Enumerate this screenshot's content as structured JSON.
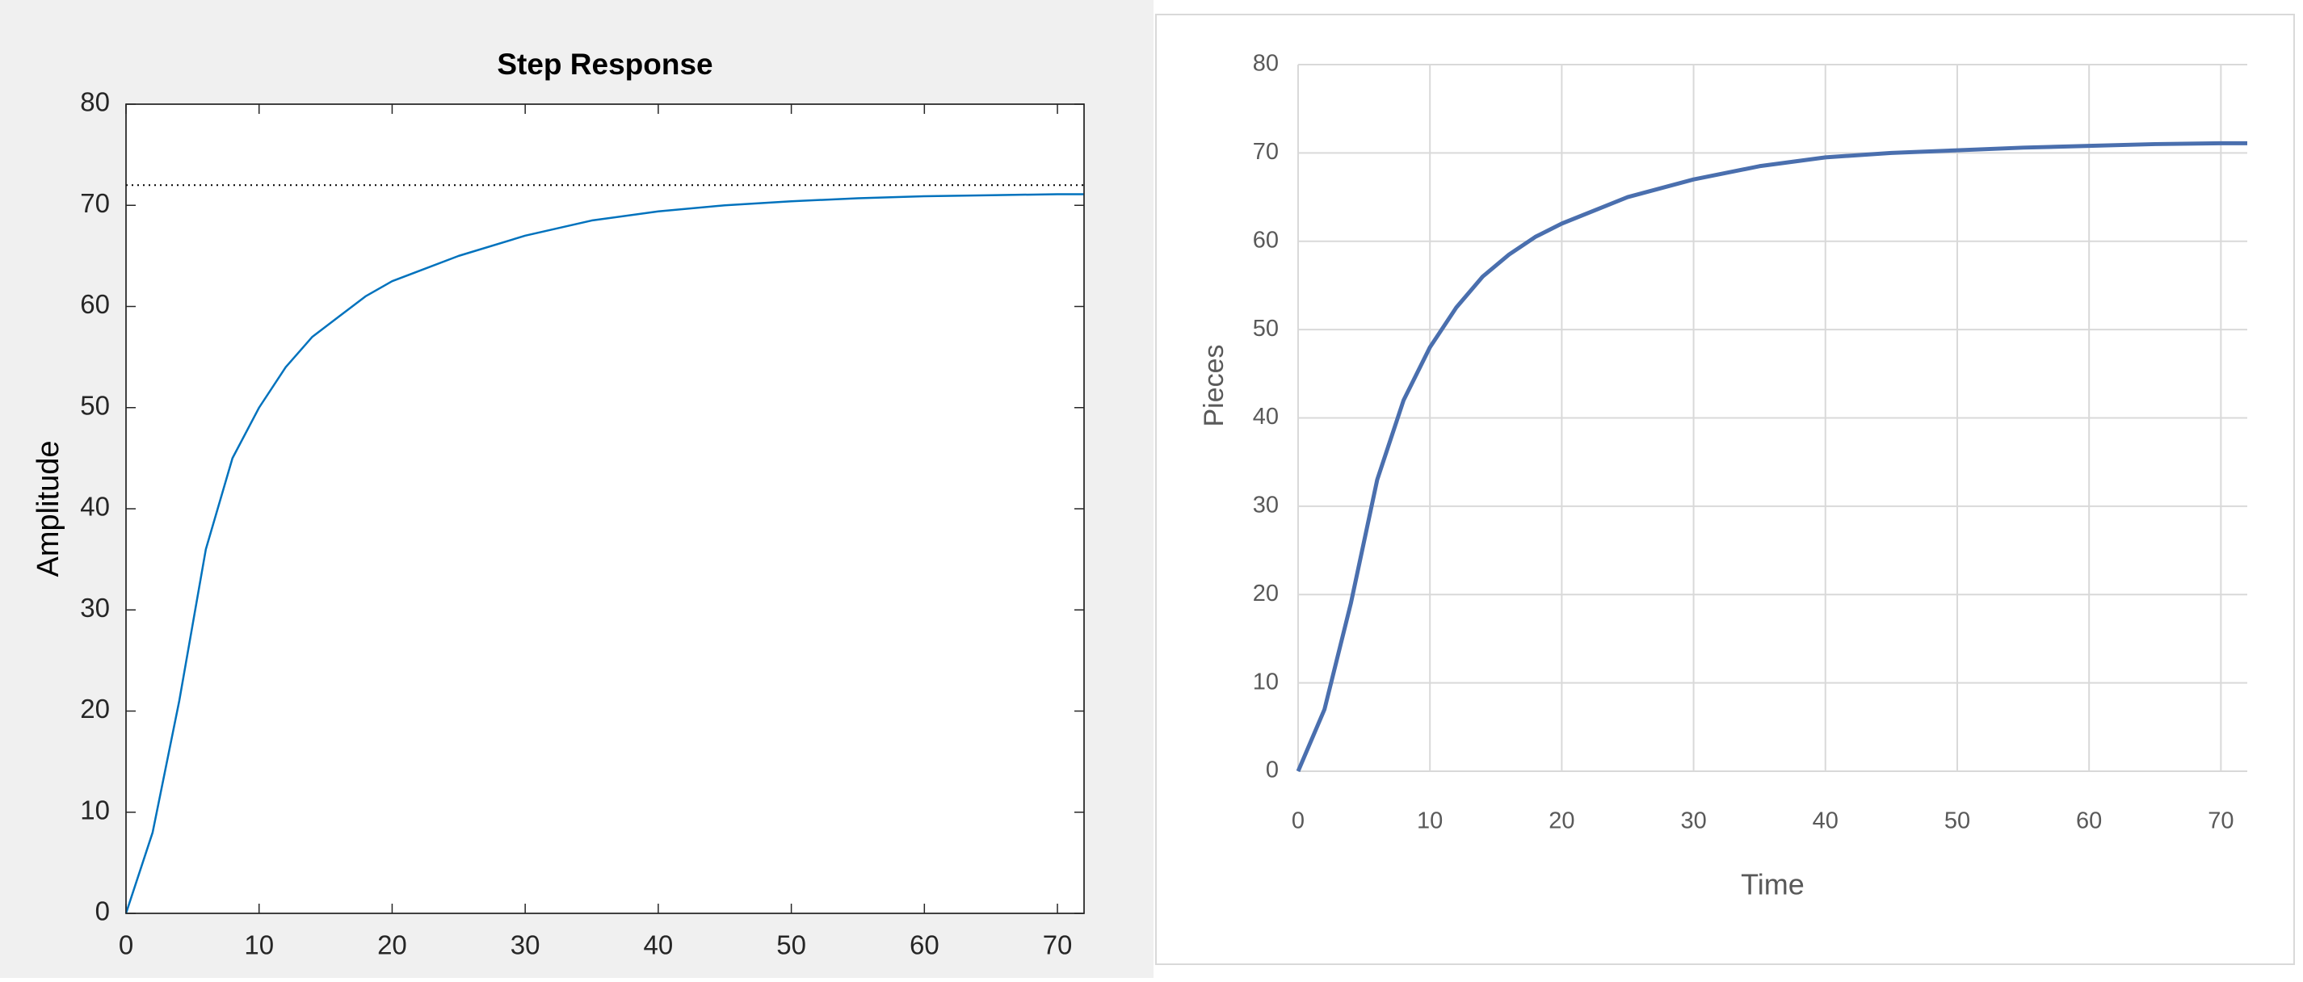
{
  "chart_data": [
    {
      "type": "line",
      "title": "Step Response",
      "y_label": "Amplitude",
      "x": [
        0,
        2,
        4,
        6,
        8,
        10,
        12,
        14,
        16,
        18,
        20,
        25,
        30,
        35,
        40,
        45,
        50,
        55,
        60,
        65,
        70,
        72
      ],
      "series": [
        {
          "name": "Step",
          "color": "#0072bd",
          "values": [
            0,
            8,
            21,
            36,
            45,
            50,
            54,
            57,
            59,
            61,
            62.5,
            65,
            67,
            68.5,
            69.4,
            70,
            70.4,
            70.7,
            70.9,
            71,
            71.1,
            71.1
          ]
        }
      ],
      "reference_y": 72,
      "xlim": [
        0,
        72
      ],
      "ylim": [
        0,
        80
      ],
      "xticks": [
        0,
        10,
        20,
        30,
        40,
        50,
        60,
        70
      ],
      "yticks": [
        0,
        10,
        20,
        30,
        40,
        50,
        60,
        70,
        80
      ],
      "grid": false
    },
    {
      "type": "line",
      "x_label": "Time",
      "y_label": "Pieces",
      "x": [
        0,
        2,
        4,
        6,
        8,
        10,
        12,
        14,
        16,
        18,
        20,
        25,
        30,
        35,
        40,
        45,
        50,
        55,
        60,
        65,
        70,
        72
      ],
      "series": [
        {
          "name": "Pieces",
          "color": "#4a6fae",
          "values": [
            0,
            7,
            19,
            33,
            42,
            48,
            52.5,
            56,
            58.5,
            60.5,
            62,
            65,
            67,
            68.5,
            69.5,
            70,
            70.3,
            70.6,
            70.8,
            71,
            71.1,
            71.1
          ]
        }
      ],
      "xlim": [
        0,
        72
      ],
      "ylim": [
        0,
        80
      ],
      "xticks": [
        0,
        10,
        20,
        30,
        40,
        50,
        60,
        70
      ],
      "yticks": [
        0,
        10,
        20,
        30,
        40,
        50,
        60,
        70,
        80
      ],
      "grid": true
    }
  ]
}
